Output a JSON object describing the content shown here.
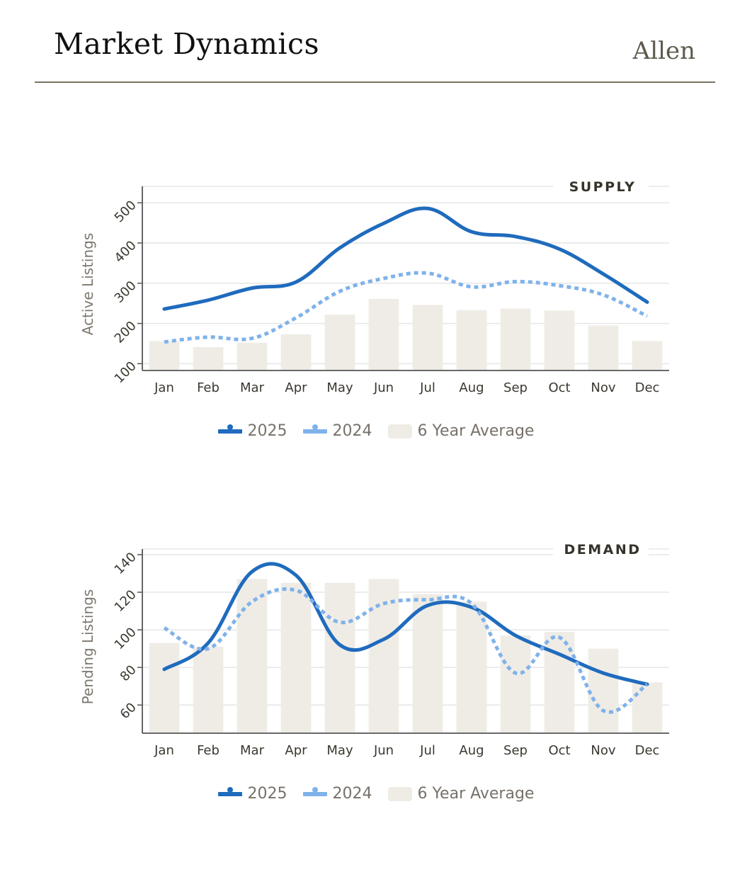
{
  "header": {
    "title": "Market Dynamics",
    "region": "Allen"
  },
  "colors": {
    "series_2025": "#1f6bbd",
    "series_2024": "#7fb2ea",
    "average_bar": "#efece6",
    "rule": "#7a7562"
  },
  "legend": {
    "items": [
      "2025",
      "2024",
      "6 Year Average"
    ]
  },
  "chart_data": [
    {
      "type": "line",
      "title": "SUPPLY",
      "xlabel": "",
      "ylabel": "Active Listings",
      "categories": [
        "Jan",
        "Feb",
        "Mar",
        "Apr",
        "May",
        "Jun",
        "Jul",
        "Aug",
        "Sep",
        "Oct",
        "Nov",
        "Dec"
      ],
      "yticks": [
        100,
        200,
        300,
        400,
        500
      ],
      "ylim": [
        83,
        541
      ],
      "grid": true,
      "legend_position": "bottom",
      "series": [
        {
          "name": "2025",
          "kind": "line",
          "style": "solid",
          "values": [
            236,
            258,
            288,
            303,
            388,
            449,
            486,
            428,
            416,
            385,
            323,
            253
          ]
        },
        {
          "name": "2024",
          "kind": "line",
          "style": "dotted",
          "values": [
            154,
            166,
            163,
            214,
            280,
            312,
            325,
            291,
            304,
            294,
            271,
            218
          ]
        },
        {
          "name": "6 Year Average",
          "kind": "bar",
          "values": [
            156,
            141,
            152,
            173,
            222,
            261,
            246,
            233,
            237,
            232,
            195,
            156
          ]
        }
      ]
    },
    {
      "type": "line",
      "title": "DEMAND",
      "xlabel": "",
      "ylabel": "Pending Listings",
      "categories": [
        "Jan",
        "Feb",
        "Mar",
        "Apr",
        "May",
        "Jun",
        "Jul",
        "Aug",
        "Sep",
        "Oct",
        "Nov",
        "Dec"
      ],
      "yticks": [
        60,
        80,
        100,
        120,
        140
      ],
      "ylim": [
        45,
        143
      ],
      "grid": true,
      "legend_position": "bottom",
      "series": [
        {
          "name": "2025",
          "kind": "line",
          "style": "solid",
          "values": [
            79,
            93,
            131,
            129,
            92,
            95,
            113,
            112,
            97,
            87,
            77,
            71
          ]
        },
        {
          "name": "2024",
          "kind": "line",
          "style": "dotted",
          "values": [
            101,
            90,
            115,
            121,
            104,
            114,
            116,
            114,
            77,
            96,
            57,
            71
          ]
        },
        {
          "name": "6 Year Average",
          "kind": "bar",
          "values": [
            93,
            91,
            127,
            125,
            125,
            127,
            119,
            115,
            97,
            99,
            90,
            72
          ]
        }
      ]
    }
  ]
}
